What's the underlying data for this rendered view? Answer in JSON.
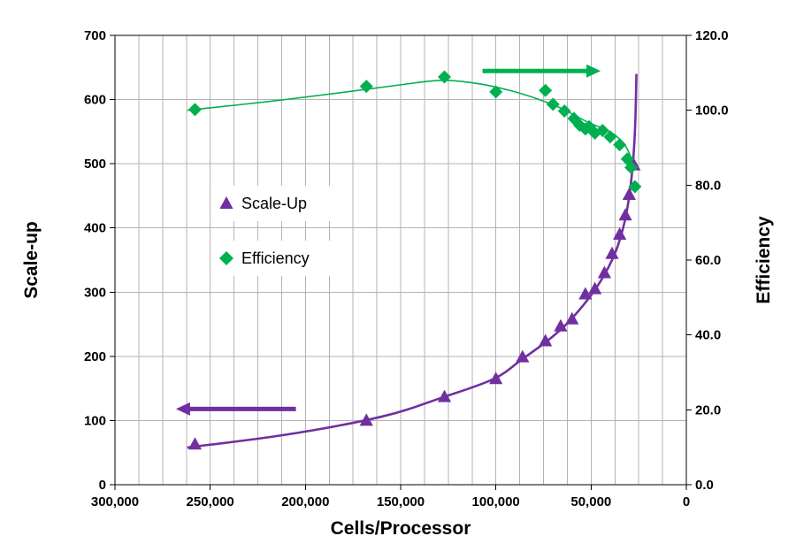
{
  "chart_data": {
    "type": "scatter",
    "title": "",
    "xlabel": "Cells/Processor",
    "ylabel_left": "Scale-up",
    "ylabel_right": "Efficiency",
    "grid": {
      "color": "#b3b3b3",
      "horizontal": true,
      "vertical": true
    },
    "x_axis": {
      "min": 0,
      "max": 300000,
      "reversed": true,
      "major_step": 50000,
      "minor_step": 12500,
      "tick_values": [
        300000,
        250000,
        200000,
        150000,
        100000,
        50000,
        0
      ],
      "tick_labels": [
        "300,000",
        "250,000",
        "200,000",
        "150,000",
        "100,000",
        "50,000",
        "0"
      ]
    },
    "y_axis_left": {
      "min": 0,
      "max": 700,
      "step": 100,
      "tick_labels": [
        "0",
        "100",
        "200",
        "300",
        "400",
        "500",
        "600",
        "700"
      ]
    },
    "y_axis_right": {
      "min": 0,
      "max": 120,
      "step": 20,
      "tick_labels": [
        "0.0",
        "20.0",
        "40.0",
        "60.0",
        "80.0",
        "100.0",
        "120.0"
      ]
    },
    "series": [
      {
        "name": "Scale-Up",
        "axis": "left",
        "marker": "triangle",
        "color": "#7030a0",
        "line_width": 2.6,
        "points": [
          [
            258000,
            63
          ],
          [
            168000,
            100
          ],
          [
            127000,
            137
          ],
          [
            100000,
            165
          ],
          [
            86000,
            199
          ],
          [
            74000,
            224
          ],
          [
            66000,
            247
          ],
          [
            60000,
            258
          ],
          [
            53000,
            297
          ],
          [
            48000,
            305
          ],
          [
            43000,
            330
          ],
          [
            39000,
            360
          ],
          [
            35000,
            390
          ],
          [
            32000,
            420
          ],
          [
            30000,
            452
          ],
          [
            27500,
            498
          ]
        ],
        "trend": [
          [
            262000,
            58
          ],
          [
            210000,
            78
          ],
          [
            160000,
            106
          ],
          [
            128000,
            136
          ],
          [
            101000,
            165
          ],
          [
            86000,
            196
          ],
          [
            73000,
            224
          ],
          [
            63000,
            250
          ],
          [
            54000,
            280
          ],
          [
            47000,
            308
          ],
          [
            41000,
            338
          ],
          [
            36000,
            372
          ],
          [
            32000,
            415
          ],
          [
            29500,
            460
          ],
          [
            27800,
            510
          ],
          [
            26800,
            565
          ],
          [
            26200,
            640
          ]
        ]
      },
      {
        "name": "Efficiency",
        "axis": "right",
        "marker": "diamond",
        "color": "#00b050",
        "line_width": 1.6,
        "points": [
          [
            258000,
            100.2
          ],
          [
            168000,
            106.4
          ],
          [
            127000,
            108.9
          ],
          [
            100000,
            104.9
          ],
          [
            74000,
            105.3
          ],
          [
            70000,
            101.6
          ],
          [
            64000,
            99.8
          ],
          [
            59000,
            97.8
          ],
          [
            56000,
            96.0
          ],
          [
            53000,
            95.0
          ],
          [
            51000,
            95.6
          ],
          [
            48000,
            93.9
          ],
          [
            44000,
            94.6
          ],
          [
            40000,
            92.9
          ],
          [
            35000,
            90.8
          ],
          [
            31000,
            87.0
          ],
          [
            29000,
            84.7
          ],
          [
            27000,
            79.6
          ]
        ],
        "trend": [
          [
            262000,
            100.0
          ],
          [
            220000,
            102.3
          ],
          [
            180000,
            104.8
          ],
          [
            150000,
            106.8
          ],
          [
            128000,
            108.0
          ],
          [
            108000,
            107.0
          ],
          [
            92000,
            105.2
          ],
          [
            78000,
            103.0
          ],
          [
            66000,
            100.6
          ],
          [
            57000,
            98.2
          ],
          [
            50000,
            96.4
          ],
          [
            44000,
            95.2
          ],
          [
            38000,
            93.6
          ],
          [
            33000,
            91.2
          ],
          [
            30000,
            88.6
          ],
          [
            28000,
            85.8
          ]
        ]
      }
    ],
    "legend": {
      "position": "inside-upper-left",
      "items": [
        {
          "label": "Scale-Up",
          "series": 0
        },
        {
          "label": "Efficiency",
          "series": 1
        }
      ]
    },
    "arrows": [
      {
        "name": "scale-up-axis-arrow",
        "color": "#7030a0",
        "axis": "left",
        "y": 118,
        "x_from": 205000,
        "x_to": 268000,
        "direction": "left"
      },
      {
        "name": "efficiency-axis-arrow",
        "color": "#00b050",
        "axis": "right",
        "y": 110.5,
        "x_from": 107000,
        "x_to": 45000,
        "direction": "right"
      }
    ]
  }
}
